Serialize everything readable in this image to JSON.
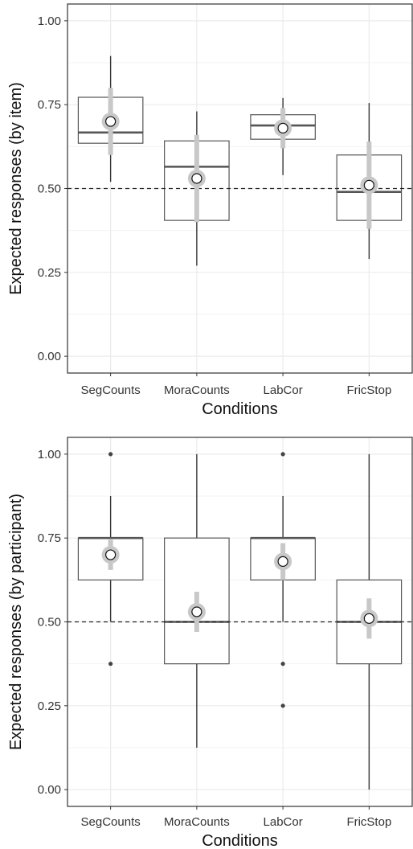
{
  "chart_data": [
    {
      "type": "box",
      "xlabel": "Conditions",
      "ylabel": "Expected responses (by item)",
      "categories": [
        "SegCounts",
        "MoraCounts",
        "LabCor",
        "FricStop"
      ],
      "y_ticks": [
        "0.00",
        "0.25",
        "0.50",
        "0.75",
        "1.00"
      ],
      "ylim": [
        -0.05,
        1.05
      ],
      "reference_line": 0.5,
      "grid": true,
      "boxes": [
        {
          "category": "SegCounts",
          "q1": 0.635,
          "median": 0.667,
          "q3": 0.772,
          "whisker_low": 0.52,
          "whisker_high": 0.895,
          "outliers": []
        },
        {
          "category": "MoraCounts",
          "q1": 0.405,
          "median": 0.565,
          "q3": 0.642,
          "whisker_low": 0.27,
          "whisker_high": 0.73,
          "outliers": []
        },
        {
          "category": "LabCor",
          "q1": 0.647,
          "median": 0.688,
          "q3": 0.72,
          "whisker_low": 0.54,
          "whisker_high": 0.77,
          "outliers": []
        },
        {
          "category": "FricStop",
          "q1": 0.405,
          "median": 0.49,
          "q3": 0.6,
          "whisker_low": 0.29,
          "whisker_high": 0.755,
          "outliers": []
        }
      ],
      "means": [
        {
          "category": "SegCounts",
          "mean": 0.7,
          "ci_low": 0.6,
          "ci_high": 0.8
        },
        {
          "category": "MoraCounts",
          "mean": 0.53,
          "ci_low": 0.4,
          "ci_high": 0.66
        },
        {
          "category": "LabCor",
          "mean": 0.68,
          "ci_low": 0.62,
          "ci_high": 0.74
        },
        {
          "category": "FricStop",
          "mean": 0.51,
          "ci_low": 0.38,
          "ci_high": 0.64
        }
      ],
      "colors": {
        "box": "#555555",
        "median": "#555555",
        "ci": "#c8c8c8",
        "mean_fill": "#ffffff",
        "grid": "#ebebeb",
        "reference": "#222222"
      }
    },
    {
      "type": "box",
      "xlabel": "Conditions",
      "ylabel": "Expected responses (by participant)",
      "categories": [
        "SegCounts",
        "MoraCounts",
        "LabCor",
        "FricStop"
      ],
      "y_ticks": [
        "0.00",
        "0.25",
        "0.50",
        "0.75",
        "1.00"
      ],
      "ylim": [
        -0.05,
        1.05
      ],
      "reference_line": 0.5,
      "grid": true,
      "boxes": [
        {
          "category": "SegCounts",
          "q1": 0.625,
          "median": 0.75,
          "q3": 0.75,
          "whisker_low": 0.5,
          "whisker_high": 0.875,
          "outliers": [
            1.0,
            0.375
          ]
        },
        {
          "category": "MoraCounts",
          "q1": 0.375,
          "median": 0.5,
          "q3": 0.75,
          "whisker_low": 0.125,
          "whisker_high": 1.0,
          "outliers": []
        },
        {
          "category": "LabCor",
          "q1": 0.625,
          "median": 0.75,
          "q3": 0.75,
          "whisker_low": 0.5,
          "whisker_high": 0.875,
          "outliers": [
            1.0,
            0.375,
            0.25
          ]
        },
        {
          "category": "FricStop",
          "q1": 0.375,
          "median": 0.5,
          "q3": 0.625,
          "whisker_low": 0.0,
          "whisker_high": 1.0,
          "outliers": []
        }
      ],
      "means": [
        {
          "category": "SegCounts",
          "mean": 0.7,
          "ci_low": 0.655,
          "ci_high": 0.745
        },
        {
          "category": "MoraCounts",
          "mean": 0.53,
          "ci_low": 0.47,
          "ci_high": 0.59
        },
        {
          "category": "LabCor",
          "mean": 0.68,
          "ci_low": 0.625,
          "ci_high": 0.735
        },
        {
          "category": "FricStop",
          "mean": 0.51,
          "ci_low": 0.45,
          "ci_high": 0.57
        }
      ],
      "colors": {
        "box": "#555555",
        "median": "#555555",
        "ci": "#c8c8c8",
        "mean_fill": "#ffffff",
        "grid": "#ebebeb",
        "reference": "#222222"
      }
    }
  ]
}
